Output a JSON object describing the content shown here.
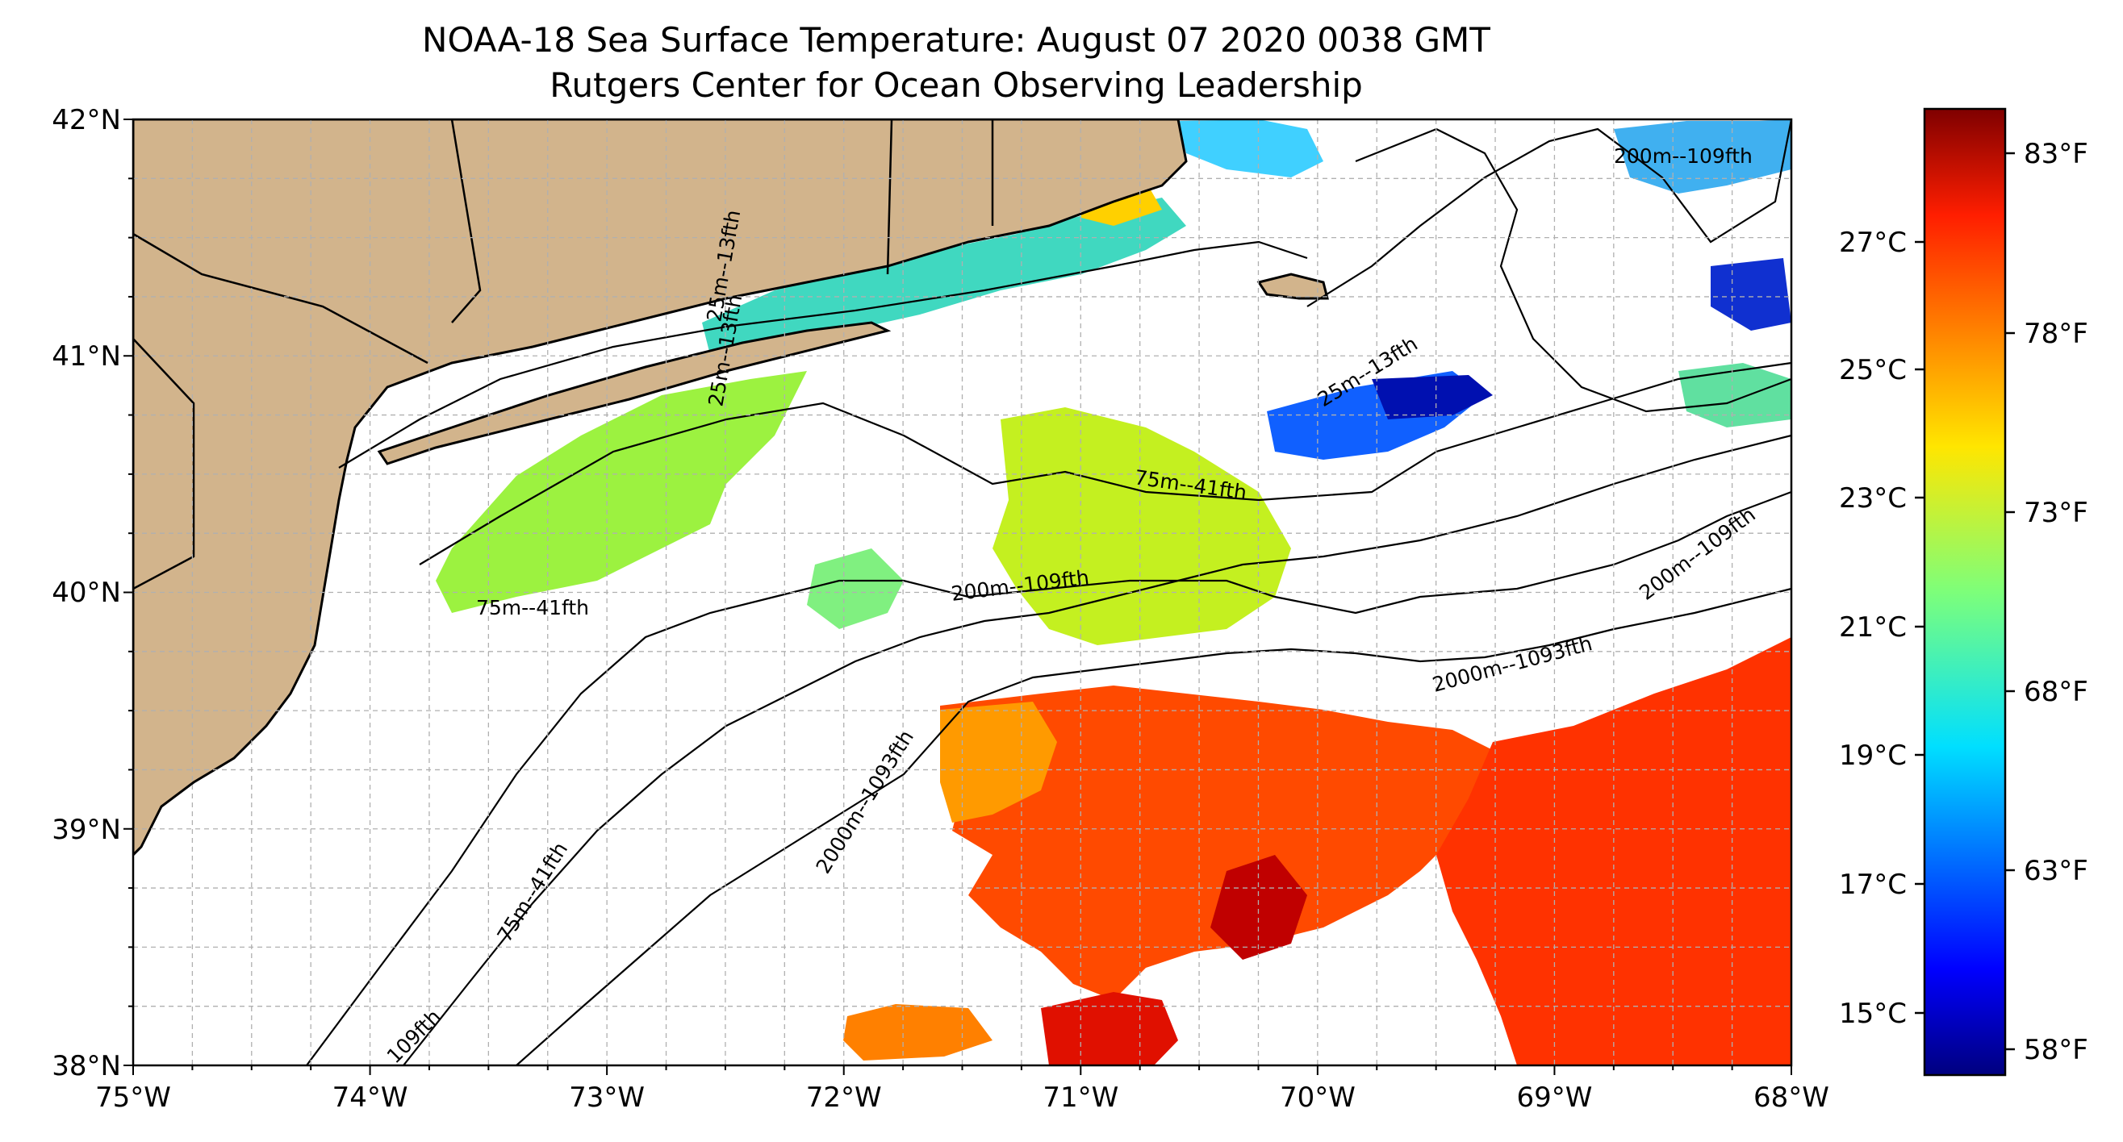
{
  "title": {
    "line1": "NOAA-18 Sea Surface Temperature: August 07 2020 0038 GMT",
    "line2": "Rutgers Center for Ocean Observing Leadership"
  },
  "map": {
    "lon_labels": [
      "75°W",
      "74°W",
      "73°W",
      "72°W",
      "71°W",
      "70°W",
      "69°W",
      "68°W"
    ],
    "lat_labels": [
      "42°N",
      "41°N",
      "40°N",
      "39°N",
      "38°N"
    ],
    "contour_labels": [
      "200m--109fth",
      "25m--13fth",
      "75m--41fth",
      "75m--41fth",
      "200m--109fth",
      "200m--109fth",
      "2000m--1093fth",
      "2000m--1093fth",
      "75m--41fth",
      "109fth",
      "25m--13fth",
      "25m--13fth"
    ],
    "colors": {
      "land": "#d2b48c",
      "ocean": "#ffffff",
      "grid": "#b0b0b0"
    }
  },
  "colorbar": {
    "celsius_labels": [
      "27°C",
      "25°C",
      "23°C",
      "21°C",
      "19°C",
      "17°C",
      "15°C"
    ],
    "fahrenheit_labels": [
      "83°F",
      "78°F",
      "73°F",
      "68°F",
      "63°F",
      "58°F"
    ],
    "colormap": "jet"
  }
}
